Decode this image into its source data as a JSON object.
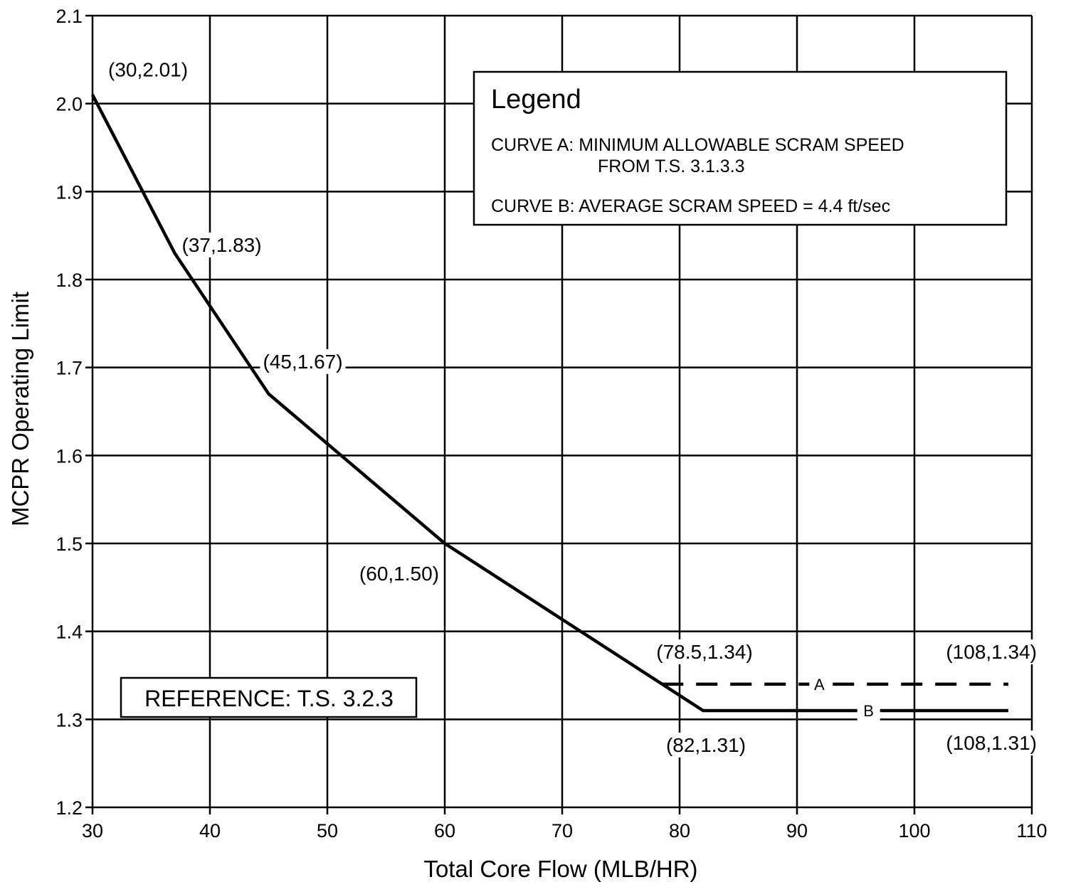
{
  "chart_data": {
    "type": "line",
    "xlabel": "Total Core Flow (MLB/HR)",
    "ylabel": "MCPR Operating Limit",
    "xlim": [
      30,
      110
    ],
    "ylim": [
      1.2,
      2.1
    ],
    "xticks": [
      "30",
      "40",
      "50",
      "60",
      "70",
      "80",
      "90",
      "100",
      "110"
    ],
    "yticks": [
      "1.2",
      "1.3",
      "1.4",
      "1.5",
      "1.6",
      "1.7",
      "1.8",
      "1.9",
      "2.0",
      "2.1"
    ],
    "grid": true,
    "legend": {
      "title": "Legend",
      "entries": [
        "CURVE A: MINIMUM ALLOWABLE SCRAM SPEED",
        "FROM T.S. 3.1.3.3",
        "CURVE B: AVERAGE SCRAM SPEED = 4.4 ft/sec"
      ],
      "placement": "top-right"
    },
    "reference_note": "REFERENCE: T.S. 3.2.3",
    "series": [
      {
        "name": "A",
        "style": "dashed",
        "x": [
          30,
          37,
          45,
          60,
          78.5,
          108
        ],
        "y": [
          2.01,
          1.83,
          1.67,
          1.5,
          1.34,
          1.34
        ]
      },
      {
        "name": "B",
        "style": "solid",
        "x": [
          30,
          37,
          45,
          60,
          82,
          108
        ],
        "y": [
          2.01,
          1.83,
          1.67,
          1.5,
          1.31,
          1.31
        ]
      }
    ],
    "annotations": [
      {
        "text": "(30,2.01)",
        "x": 30,
        "y": 2.01
      },
      {
        "text": "(37,1.83)",
        "x": 37,
        "y": 1.83
      },
      {
        "text": "(45,1.67)",
        "x": 45,
        "y": 1.67
      },
      {
        "text": "(60,1.50)",
        "x": 60,
        "y": 1.5
      },
      {
        "text": "(78.5,1.34)",
        "x": 78.5,
        "y": 1.34
      },
      {
        "text": "(108,1.34)",
        "x": 108,
        "y": 1.34
      },
      {
        "text": "(82,1.31)",
        "x": 82,
        "y": 1.31
      },
      {
        "text": "(108,1.31)",
        "x": 108,
        "y": 1.31
      }
    ]
  }
}
